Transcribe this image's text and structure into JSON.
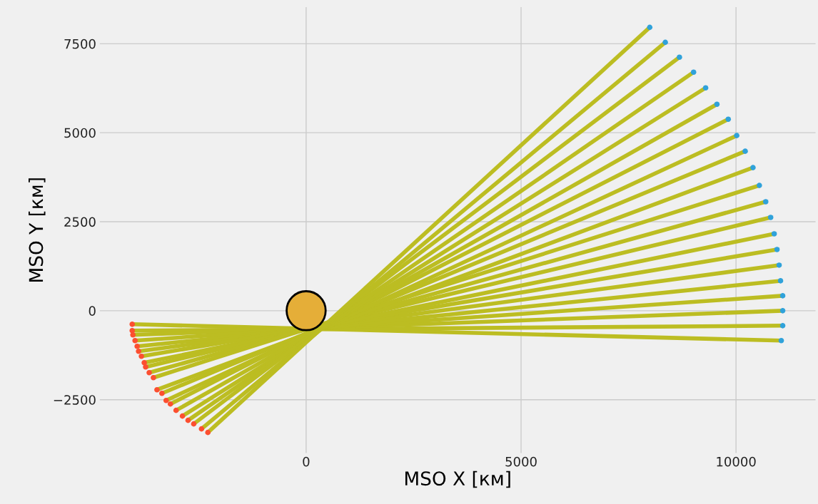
{
  "chart_data": {
    "type": "line",
    "xlabel": "MSO X [км]",
    "ylabel": "MSO Y [км]",
    "xlim": [
      -4800,
      11850
    ],
    "ylim": [
      -4000,
      8530
    ],
    "xticks": [
      0,
      5000,
      10000
    ],
    "yticks": [
      {
        "value": -2500,
        "label": "−2500"
      },
      0,
      2500,
      5000,
      7500
    ],
    "grid": true,
    "marker": "none",
    "line_style": "solid",
    "series": [
      {
        "color": "#bcbd22",
        "x": [
          -4046,
          11053
        ],
        "values": [
          -380,
          -840
        ]
      },
      {
        "color": "#bcbd22",
        "x": [
          -4046,
          11086
        ],
        "values": [
          -560,
          -420
        ]
      },
      {
        "color": "#bcbd22",
        "x": [
          -4030,
          11086
        ],
        "values": [
          -680,
          0
        ]
      },
      {
        "color": "#bcbd22",
        "x": [
          -3980,
          11086
        ],
        "values": [
          -840,
          420
        ]
      },
      {
        "color": "#bcbd22",
        "x": [
          -3931,
          11036
        ],
        "values": [
          -1000,
          840
        ]
      },
      {
        "color": "#bcbd22",
        "x": [
          -3898,
          11003
        ],
        "values": [
          -1140,
          1280
        ]
      },
      {
        "color": "#bcbd22",
        "x": [
          -3832,
          10954
        ],
        "values": [
          -1280,
          1720
        ]
      },
      {
        "color": "#bcbd22",
        "x": [
          -3766,
          10888
        ],
        "values": [
          -1460,
          2160
        ]
      },
      {
        "color": "#bcbd22",
        "x": [
          -3734,
          10806
        ],
        "values": [
          -1580,
          2620
        ]
      },
      {
        "color": "#bcbd22",
        "x": [
          -3651,
          10691
        ],
        "values": [
          -1740,
          3060
        ]
      },
      {
        "color": "#bcbd22",
        "x": [
          -3553,
          10543
        ],
        "values": [
          -1880,
          3520
        ]
      },
      {
        "color": "#bcbd22",
        "x": [
          -3470,
          10395
        ],
        "values": [
          -2220,
          4020
        ]
      },
      {
        "color": "#bcbd22",
        "x": [
          -3355,
          10214
        ],
        "values": [
          -2320,
          4480
        ]
      },
      {
        "color": "#bcbd22",
        "x": [
          -3257,
          10016
        ],
        "values": [
          -2520,
          4920
        ]
      },
      {
        "color": "#bcbd22",
        "x": [
          -3158,
          9819
        ],
        "values": [
          -2620,
          5380
        ]
      },
      {
        "color": "#bcbd22",
        "x": [
          -3026,
          9556
        ],
        "values": [
          -2800,
          5800
        ]
      },
      {
        "color": "#bcbd22",
        "x": [
          -2878,
          9293
        ],
        "values": [
          -2960,
          6260
        ]
      },
      {
        "color": "#bcbd22",
        "x": [
          -2747,
          9013
        ],
        "values": [
          -3080,
          6700
        ]
      },
      {
        "color": "#bcbd22",
        "x": [
          -2615,
          8684
        ],
        "values": [
          -3180,
          7120
        ]
      },
      {
        "color": "#bcbd22",
        "x": [
          -2434,
          8355
        ],
        "values": [
          -3320,
          7540
        ]
      },
      {
        "color": "#bcbd22",
        "x": [
          -2286,
          7993
        ],
        "values": [
          -3420,
          7960
        ]
      },
      {
        "type": "scatter",
        "color": "#fc4f30",
        "x": [
          -4046,
          -4046,
          -4030,
          -3980,
          -3931,
          -3898,
          -3832,
          -3766,
          -3734,
          -3651,
          -3553,
          -3470,
          -3355,
          -3257,
          -3158,
          -3026,
          -2878,
          -2747,
          -2615,
          -2434,
          -2286
        ],
        "values": [
          -380,
          -560,
          -680,
          -840,
          -1000,
          -1140,
          -1280,
          -1460,
          -1580,
          -1740,
          -1880,
          -2220,
          -2320,
          -2520,
          -2620,
          -2800,
          -2960,
          -3080,
          -3180,
          -3320,
          -3420
        ],
        "marker": "circle"
      },
      {
        "type": "scatter",
        "color": "#30a2da",
        "x": [
          11053,
          11086,
          11086,
          11086,
          11036,
          11003,
          10954,
          10888,
          10806,
          10691,
          10543,
          10395,
          10214,
          10016,
          9819,
          9556,
          9293,
          9013,
          8684,
          8355,
          7993
        ],
        "values": [
          -840,
          -420,
          0,
          420,
          840,
          1280,
          1720,
          2160,
          2620,
          3060,
          3520,
          4020,
          4480,
          4920,
          5380,
          5800,
          6260,
          6700,
          7120,
          7540,
          7960
        ],
        "marker": "circle"
      },
      {
        "type": "bubble",
        "color": "#e5ae38",
        "x": [
          0
        ],
        "values": [
          0
        ],
        "marker": "circle"
      }
    ]
  }
}
